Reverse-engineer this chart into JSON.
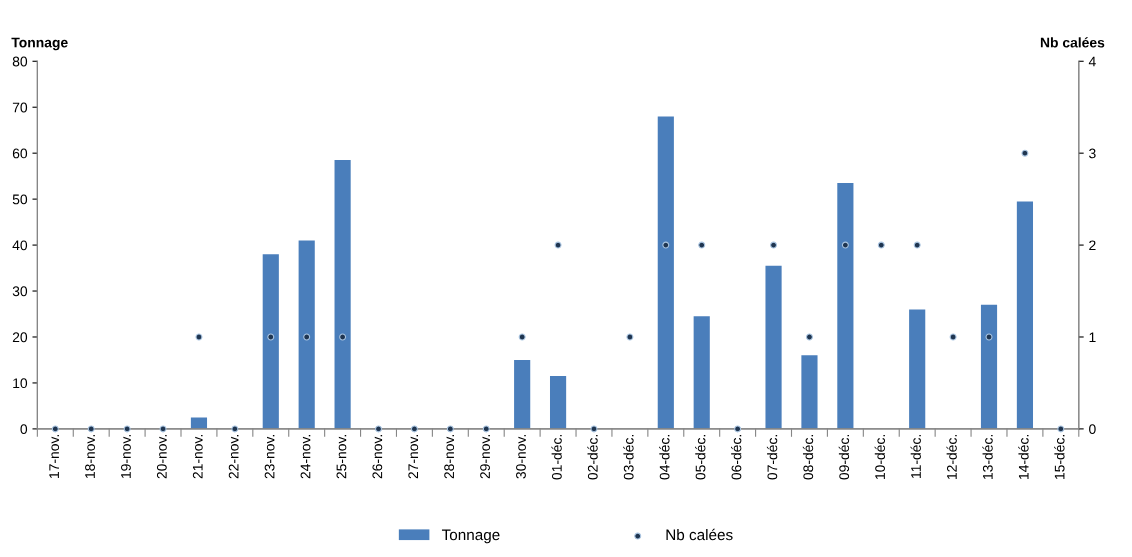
{
  "chart_data": {
    "type": "bar",
    "categories": [
      "17-nov.",
      "18-nov.",
      "19-nov.",
      "20-nov.",
      "21-nov.",
      "22-nov.",
      "23-nov.",
      "24-nov.",
      "25-nov.",
      "26-nov.",
      "27-nov.",
      "28-nov.",
      "29-nov.",
      "30-nov.",
      "01-déc.",
      "02-déc.",
      "03-déc.",
      "04-déc.",
      "05-déc.",
      "06-déc.",
      "07-déc.",
      "08-déc.",
      "09-déc.",
      "10-déc.",
      "11-déc.",
      "12-déc.",
      "13-déc.",
      "14-déc.",
      "15-déc."
    ],
    "series": [
      {
        "name": "Tonnage",
        "color": "#4a7ebb",
        "values": [
          0,
          0,
          0,
          0,
          2.5,
          0,
          38,
          41,
          58.5,
          0,
          0,
          0,
          0,
          15,
          11.5,
          0,
          0,
          68,
          24.5,
          0,
          35.5,
          16,
          53.5,
          0,
          26,
          0,
          27,
          49.5,
          0
        ]
      },
      {
        "name": "Nb calées",
        "type": "scatter",
        "axis": "y2",
        "color": "#1f3550",
        "values": [
          0,
          0,
          0,
          0,
          1,
          0,
          1,
          1,
          1,
          0,
          0,
          0,
          0,
          1,
          2,
          0,
          1,
          2,
          2,
          0,
          2,
          1,
          2,
          2,
          2,
          1,
          1,
          3,
          0
        ]
      }
    ],
    "ylabel": "Tonnage",
    "y2label": "Nb calées",
    "ylim": [
      0,
      80
    ],
    "yticks": [
      0,
      10,
      20,
      30,
      40,
      50,
      60,
      70,
      80
    ],
    "y2lim": [
      0,
      4
    ],
    "y2ticks": [
      0,
      1,
      2,
      3,
      4
    ],
    "marker": "circle",
    "grid": false,
    "legend": "bottom"
  }
}
